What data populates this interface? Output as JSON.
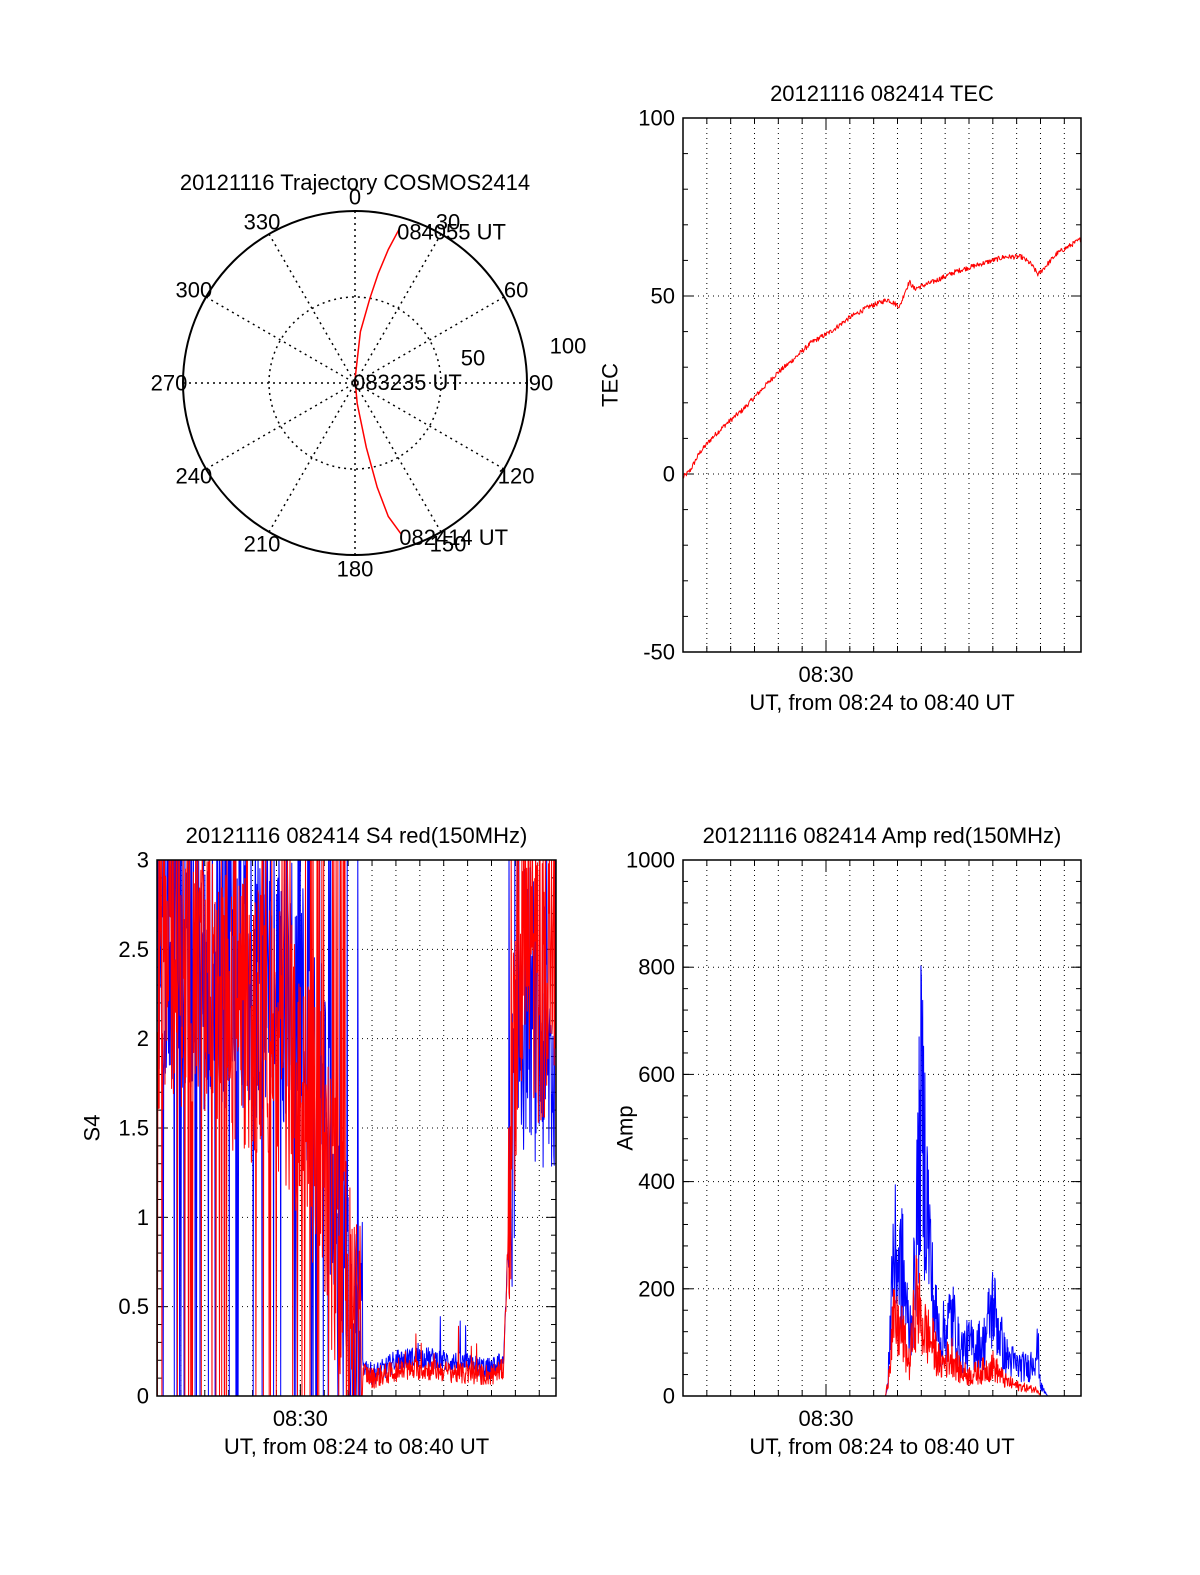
{
  "colors": {
    "red": "#ff0000",
    "blue": "#0000ff",
    "axis": "#000000",
    "grid": "#000000",
    "background": "#ffffff"
  },
  "chart_data": [
    {
      "id": "polar",
      "type": "scatter",
      "coordinate_system": "polar",
      "title": "20121116 Trajectory COSMOS2414",
      "azimuth_labels": [
        "0",
        "30",
        "60",
        "90",
        "120",
        "150",
        "180",
        "210",
        "240",
        "270",
        "300",
        "330"
      ],
      "radial_labels": [
        "50",
        "100"
      ],
      "r_range": [
        0,
        100
      ],
      "grid": true,
      "line_color": "red",
      "series": [
        {
          "azimuth_deg": [
            16,
            14,
            12,
            10,
            6,
            0,
            174,
            170,
            168,
            166,
            163
          ],
          "zenith_r": [
            93,
            80,
            65,
            50,
            30,
            2,
            12,
            38,
            62,
            80,
            92
          ]
        }
      ],
      "annotations": [
        {
          "text": "084055 UT",
          "azimuth_deg": 16,
          "zenith_r": 93
        },
        {
          "text": "083235 UT",
          "azimuth_deg": 0,
          "zenith_r": 2
        },
        {
          "text": "082414 UT",
          "azimuth_deg": 163,
          "zenith_r": 92
        }
      ]
    },
    {
      "id": "tec",
      "type": "line",
      "title": "20121116 082414 TEC",
      "xlabel": "UT, from 08:24 to 08:40 UT",
      "ylabel": "TEC",
      "xlim_minutes_after_0824": [
        0,
        16.7
      ],
      "x_tick_labels": [
        "08:30"
      ],
      "ylim": [
        -50,
        100
      ],
      "y_tick_labels": [
        "-50",
        "0",
        "50",
        "100"
      ],
      "grid": true,
      "series": [
        {
          "color": "red",
          "x_minutes_after_0824": [
            0,
            0.3,
            0.7,
            1.2,
            1.8,
            2.5,
            3.2,
            3.9,
            4.6,
            5.4,
            6.2,
            7.0,
            7.8,
            8.6,
            9.1,
            9.3,
            9.5,
            9.7,
            10.5,
            11.5,
            12.5,
            13.5,
            14.2,
            14.6,
            14.9,
            15.3,
            15.7,
            16.2,
            16.7
          ],
          "tec": [
            -1,
            1,
            6,
            10,
            14,
            18,
            23,
            28,
            32,
            37,
            40,
            44,
            47,
            49,
            47,
            51,
            54,
            52,
            54,
            57,
            59,
            61,
            61,
            59,
            56,
            59,
            62,
            64,
            66
          ]
        }
      ]
    },
    {
      "id": "s4",
      "type": "line",
      "title": "20121116 082414 S4 red(150MHz)",
      "xlabel": "UT, from 08:24 to 08:40 UT",
      "ylabel": "S4",
      "xlim_minutes_after_0824": [
        0,
        16.7
      ],
      "x_tick_labels": [
        "08:30"
      ],
      "ylim": [
        0,
        3
      ],
      "y_tick_labels": [
        "0",
        "0.5",
        "1",
        "1.5",
        "2",
        "2.5",
        "3"
      ],
      "grid": true,
      "series": [
        {
          "color": "blue",
          "x_minutes_after_0824": [
            0,
            1,
            2,
            3,
            4,
            5,
            6,
            7,
            7.5,
            8,
            8.5,
            9,
            9.5,
            10,
            11,
            12,
            13,
            14,
            14.5,
            15,
            15.5,
            16,
            16.7
          ],
          "s4": [
            2.6,
            2.5,
            2.4,
            2.4,
            2.3,
            2.3,
            2.2,
            1.7,
            1.2,
            0.7,
            0.2,
            0.12,
            0.15,
            0.2,
            0.22,
            0.2,
            0.18,
            0.15,
            0.2,
            1.8,
            2.3,
            2.0,
            1.8
          ]
        },
        {
          "color": "red",
          "x_minutes_after_0824": [
            0,
            1,
            2,
            3,
            4,
            5,
            6,
            7,
            7.5,
            8,
            8.5,
            9,
            9.5,
            10,
            11,
            12,
            13,
            14,
            14.5,
            15,
            15.5,
            16,
            16.7
          ],
          "s4": [
            2.4,
            2.4,
            2.3,
            2.1,
            2.1,
            2.0,
            1.8,
            1.3,
            0.9,
            0.5,
            0.15,
            0.1,
            0.12,
            0.14,
            0.15,
            0.14,
            0.12,
            0.12,
            0.15,
            2.0,
            2.5,
            2.3,
            2.2
          ]
        }
      ]
    },
    {
      "id": "amp",
      "type": "line",
      "title": "20121116 082414 Amp red(150MHz)",
      "xlabel": "UT, from 08:24 to 08:40 UT",
      "ylabel": "Amp",
      "xlim_minutes_after_0824": [
        0,
        16.7
      ],
      "x_tick_labels": [
        "08:30"
      ],
      "ylim": [
        0,
        1000
      ],
      "y_tick_labels": [
        "0",
        "200",
        "400",
        "600",
        "800",
        "1000"
      ],
      "grid": true,
      "series": [
        {
          "color": "blue",
          "x_minutes_after_0824": [
            0,
            8.5,
            8.6,
            8.8,
            9.2,
            9.5,
            9.7,
            10.0,
            10.5,
            10.8,
            11.3,
            11.6,
            12.0,
            12.6,
            13.0,
            13.5,
            14.0,
            14.5,
            14.9,
            15.0,
            15.3,
            16.7
          ],
          "amp": [
            0,
            0,
            20,
            280,
            250,
            120,
            210,
            580,
            180,
            110,
            160,
            90,
            100,
            100,
            180,
            80,
            60,
            55,
            95,
            20,
            0,
            0
          ]
        },
        {
          "color": "red",
          "x_minutes_after_0824": [
            0,
            8.5,
            8.6,
            8.8,
            9.2,
            9.5,
            9.8,
            10.0,
            10.5,
            10.8,
            11.3,
            11.6,
            12.0,
            12.6,
            13.0,
            13.5,
            14.0,
            14.5,
            14.9,
            15.0,
            15.3,
            16.7
          ],
          "amp": [
            0,
            0,
            30,
            140,
            120,
            60,
            200,
            140,
            100,
            60,
            80,
            50,
            40,
            50,
            60,
            30,
            20,
            15,
            12,
            0,
            0,
            0
          ]
        }
      ]
    }
  ]
}
